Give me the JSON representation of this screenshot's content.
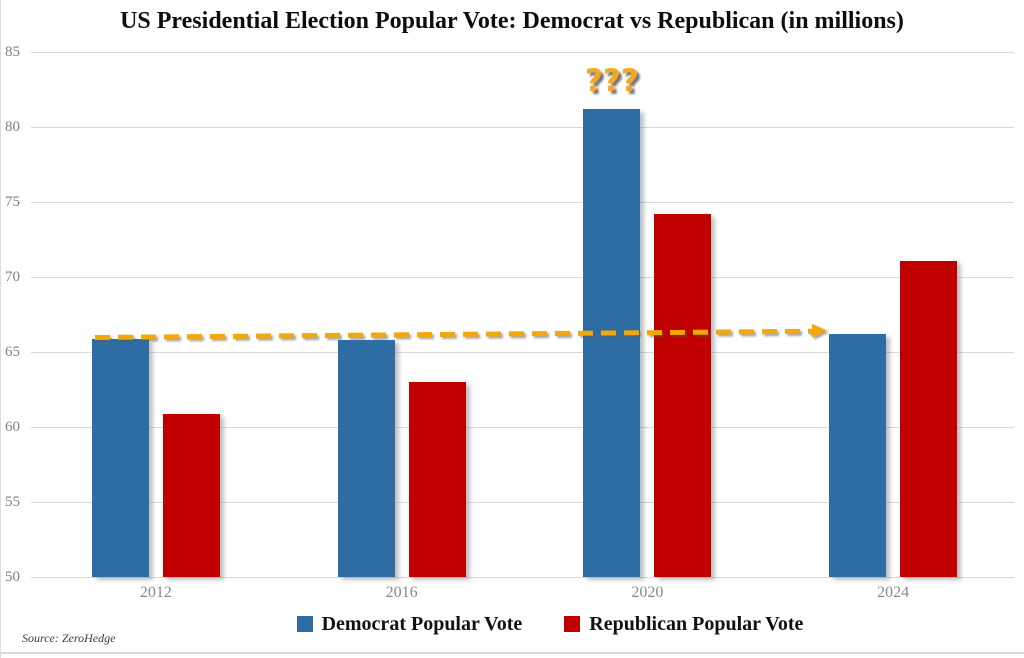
{
  "chart_data": {
    "type": "bar",
    "title": "US Presidential Election Popular Vote: Democrat vs Republican (in millions)",
    "categories": [
      "2012",
      "2016",
      "2020",
      "2024"
    ],
    "series": [
      {
        "name": "Democrat Popular Vote",
        "color": "#2E6DA4",
        "values": [
          65.9,
          65.8,
          81.2,
          66.2
        ]
      },
      {
        "name": "Republican Popular Vote",
        "color": "#C00000",
        "values": [
          60.9,
          63.0,
          74.2,
          71.1
        ]
      }
    ],
    "ylim": [
      50,
      85
    ],
    "ytick_step": 5,
    "yticks": [
      50,
      55,
      60,
      65,
      70,
      75,
      80,
      85
    ],
    "xlabel": "",
    "ylabel": "",
    "grid": "horizontal",
    "legend_position": "bottom",
    "annotations": [
      {
        "type": "text",
        "text": "???",
        "color": "#F5A81C",
        "position": "above 2020 Democrat bar"
      },
      {
        "type": "dashed-arrow",
        "color": "#F2A70A",
        "from": {
          "category": "2012",
          "value": 66.0
        },
        "to": {
          "category": "2024",
          "value": 66.4
        }
      }
    ]
  },
  "source_note": "Source: ZeroHedge",
  "colors": {
    "gridline": "#d9d9d9",
    "axis_text": "#7f7f7f",
    "title_text": "#0d0d0d"
  }
}
